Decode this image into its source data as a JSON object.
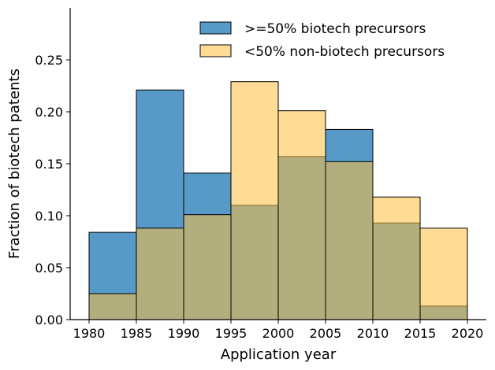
{
  "chart_data": {
    "type": "bar",
    "title": "",
    "xlabel": "Application year",
    "ylabel": "Fraction of biotech patents",
    "bin_edges": [
      1980,
      1985,
      1990,
      1995,
      2000,
      2005,
      2010,
      2015,
      2020
    ],
    "x_ticks": [
      "1980",
      "1985",
      "1990",
      "1995",
      "2000",
      "2005",
      "2010",
      "2015",
      "2020"
    ],
    "y_ticks": [
      "0.00",
      "0.05",
      "0.10",
      "0.15",
      "0.20",
      "0.25"
    ],
    "xlim": [
      1978,
      2022
    ],
    "ylim": [
      0,
      0.3
    ],
    "legend_position": "top-right",
    "grid": false,
    "series": [
      {
        "name": ">=50% biotech precursors",
        "color": "#1f77b4",
        "values": [
          0.084,
          0.221,
          0.141,
          0.11,
          0.157,
          0.183,
          0.093,
          0.013
        ]
      },
      {
        "name": "<50% non-biotech precursors",
        "color": "#ffbf40",
        "values": [
          0.025,
          0.088,
          0.101,
          0.229,
          0.201,
          0.152,
          0.118,
          0.088
        ]
      }
    ]
  }
}
